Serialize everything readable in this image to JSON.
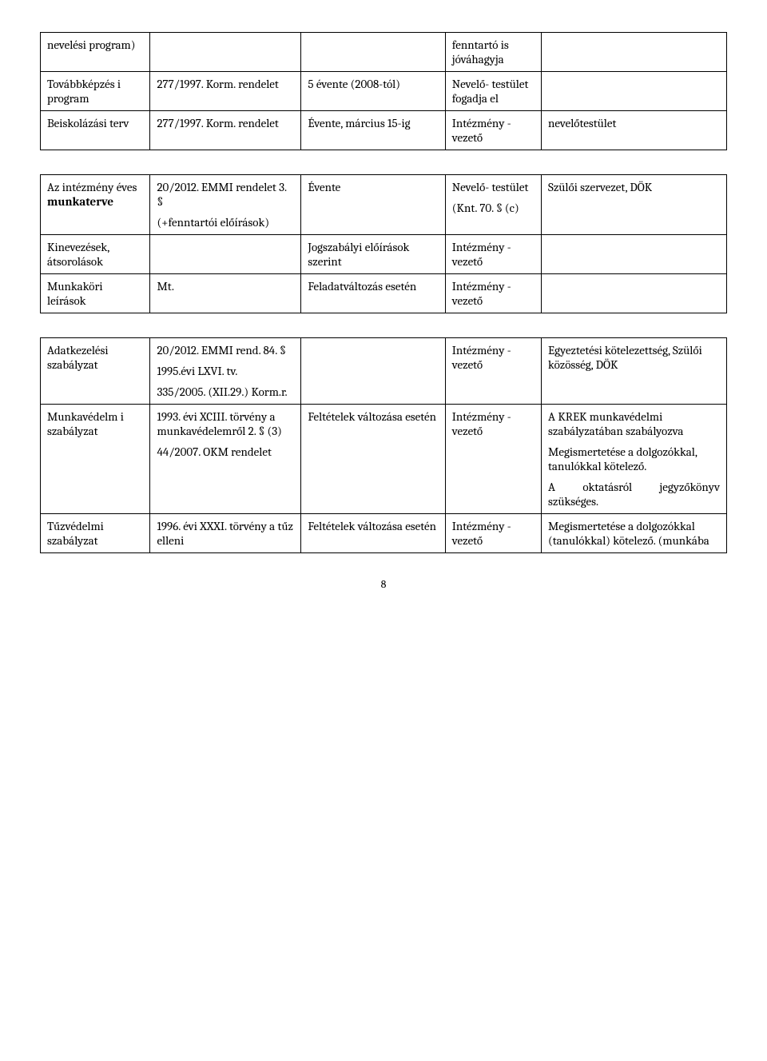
{
  "table1": {
    "rows": [
      {
        "c1": "nevelési program)",
        "c2": "",
        "c3": "",
        "c4": "fenntartó is jóváhagyja",
        "c5": ""
      },
      {
        "c1": "Továbbképzés i program",
        "c2": "277/1997. Korm. rendelet",
        "c3": "5 évente (2008-tól)",
        "c4": "Nevelő- testület fogadja el",
        "c5": ""
      },
      {
        "c1": "Beiskolázási terv",
        "c2": "277/1997. Korm. rendelet",
        "c3": "Évente, március 15-ig",
        "c4": "Intézmény -vezető",
        "c5": "nevelőtestület"
      }
    ]
  },
  "table2": {
    "rows": [
      {
        "c1a": "Az intézmény éves ",
        "c1b": "munkaterve",
        "c2a": "20/2012. EMMI rendelet 3. §",
        "c2b": "(+fenntartói előírások)",
        "c3": "Évente",
        "c4a": "Nevelő- testület",
        "c4b": "(Knt. 70. § (c)",
        "c5": "Szülői szervezet, DÖK"
      },
      {
        "c1": "Kinevezések, átsorolások",
        "c2": "",
        "c3": "Jogszabályi előírások szerint",
        "c4": "Intézmény -vezető",
        "c5": ""
      },
      {
        "c1": "Munkaköri leírások",
        "c2": "Mt.",
        "c3": "Feladatváltozás esetén",
        "c4": "Intézmény -vezető",
        "c5": ""
      }
    ]
  },
  "table3": {
    "rows": [
      {
        "c1": "Adatkezelési szabályzat",
        "c2a": "20/2012. EMMI rend. 84. §",
        "c2b": "1995.évi LXVI. tv.",
        "c2c": "335/2005. (XII.29.) Korm.r.",
        "c3": "",
        "c4": "Intézmény -vezető",
        "c5": "Egyeztetési kötelezettség, Szülői közösség, DÖK"
      },
      {
        "c1": "Munkavédelm i szabályzat",
        "c2a": "1993. évi XCIII. törvény a munkavédelemről 2. § (3)",
        "c2b": "44/2007. OKM rendelet",
        "c3": "Feltételek változása esetén",
        "c4": "Intézmény -vezető",
        "c5a": "A KREK munkavédelmi szabályzatában szabályozva",
        "c5b": "Megismertetése a dolgozókkal, tanulókkal kötelező.",
        "c5c": "A oktatásról jegyzőkönyv szükséges."
      },
      {
        "c1": "Tűzvédelmi szabályzat",
        "c2": "1996. évi XXXI. törvény a tűz elleni",
        "c3": "Feltételek változása esetén",
        "c4": "Intézmény -vezető",
        "c5": "Megismertetése a dolgozókkal (tanulókkal) kötelező. (munkába"
      }
    ]
  },
  "pageNumber": "8"
}
